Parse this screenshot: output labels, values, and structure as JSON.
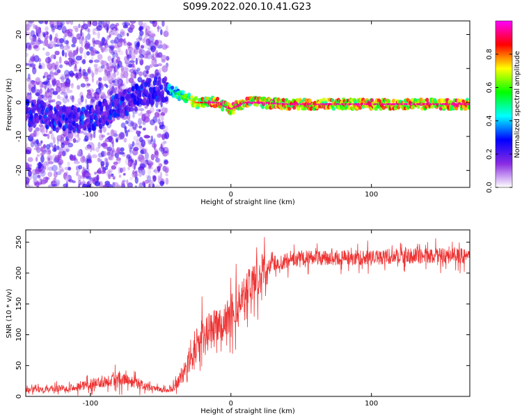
{
  "title": "S099.2022.020.10.41.G23",
  "chart_data": [
    {
      "type": "heatmap",
      "title": "S099.2022.020.10.41.G23",
      "xlabel": "Height of straight line (km)",
      "ylabel": "Frequency (Hz)",
      "xlim": [
        -146,
        170
      ],
      "ylim": [
        -25,
        24
      ],
      "x_ticks": [
        -100,
        0,
        100
      ],
      "y_ticks": [
        -20,
        -10,
        0,
        10,
        20
      ],
      "colorbar": {
        "label": "Normalized spectral amplitude",
        "range": [
          0.0,
          1.0
        ],
        "ticks": [
          "0.0",
          "0.2",
          "0.4",
          "0.6",
          "0.8"
        ],
        "colors": [
          "#ffffff",
          "#8a2be2",
          "#0000ff",
          "#00ffff",
          "#00ff00",
          "#ffff00",
          "#ff0000",
          "#ff00ff"
        ]
      },
      "ridge": {
        "x": [
          -140,
          -120,
          -100,
          -90,
          -80,
          -70,
          -60,
          -50,
          -45,
          -40,
          -35,
          -30,
          -25,
          -20,
          -15,
          -10,
          -5,
          0,
          5,
          10,
          20,
          40,
          60,
          80,
          100,
          120,
          140,
          160,
          170
        ],
        "y": [
          -3,
          -5,
          -5,
          -3,
          -1,
          1,
          3,
          4,
          4,
          3,
          2,
          1,
          0,
          0,
          0,
          0,
          -1,
          -2,
          -1,
          0,
          0,
          -0.5,
          -0.5,
          -0.5,
          -0.5,
          -0.5,
          -0.5,
          -0.5,
          -0.5
        ]
      }
    },
    {
      "type": "line",
      "xlabel": "Height of straight line (km)",
      "ylabel": "SNR (10 * v/v)",
      "xlim": [
        -146,
        170
      ],
      "ylim": [
        0,
        270
      ],
      "x_ticks": [
        -100,
        0,
        100
      ],
      "y_ticks": [
        0,
        50,
        100,
        150,
        200,
        250
      ],
      "series_color": "#ee3333",
      "series": [
        {
          "x": [
            -146,
            -130,
            -110,
            -100,
            -90,
            -80,
            -75,
            -70,
            -60,
            -50,
            -45,
            -40,
            -35,
            -30,
            -25,
            -20,
            -15,
            -10,
            -5,
            0,
            5,
            10,
            15,
            20,
            25,
            30,
            40,
            50,
            60,
            80,
            100,
            120,
            140,
            160,
            170
          ],
          "values": [
            10,
            12,
            15,
            20,
            25,
            30,
            30,
            25,
            15,
            10,
            10,
            15,
            30,
            55,
            80,
            95,
            105,
            115,
            120,
            135,
            150,
            170,
            185,
            195,
            205,
            215,
            220,
            225,
            225,
            225,
            225,
            228,
            228,
            228,
            228
          ]
        }
      ]
    }
  ]
}
